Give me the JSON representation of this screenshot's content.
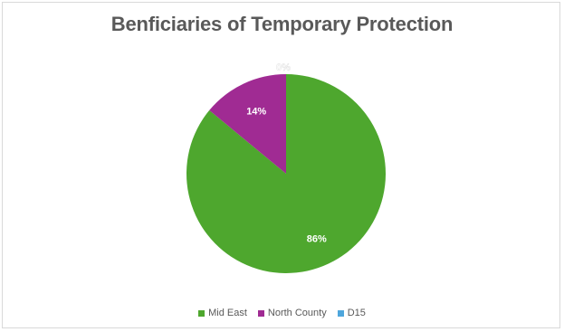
{
  "chart_data": {
    "type": "pie",
    "title": "Benficiaries of Temporary Protection",
    "categories": [
      "Mid East",
      "North County",
      "D15"
    ],
    "values": [
      86,
      14,
      0
    ],
    "data_labels": [
      "86%",
      "14%",
      "0%"
    ],
    "colors": [
      "#4ea72e",
      "#a02b93",
      "#4ea6dc"
    ],
    "legend_position": "bottom",
    "start_angle": "top, clockwise"
  }
}
